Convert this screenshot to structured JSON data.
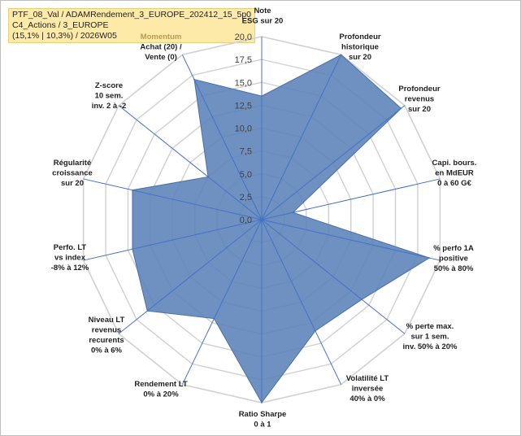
{
  "title": {
    "line1": "PTF_08_Val / ADAMRendement_3_EUROPE_202412_15_5p0",
    "line2": "C4_Actions / 3_EUROPE",
    "line3": "(15,1% | 10,3%) / 2026W05"
  },
  "chart_data": {
    "type": "radar",
    "r_range": [
      0,
      20
    ],
    "grid_step": 2.5,
    "ticks": [
      "0,0",
      "2,5",
      "5,0",
      "7,5",
      "10,0",
      "12,5",
      "15,0",
      "17,5",
      "20,0"
    ],
    "fill_color": "#5a82b8",
    "grid_color": "#d0d0d0",
    "spoke_color": "#4472c4",
    "axes": [
      {
        "label": [
          "Note",
          "ESG sur 20"
        ],
        "value": 13.5
      },
      {
        "label": [
          "Profondeur",
          "historique",
          "sur 20"
        ],
        "value": 20.0
      },
      {
        "label": [
          "Profondeur",
          "revenus",
          "sur 20"
        ],
        "value": 19.5
      },
      {
        "label": [
          "Capi. bours.",
          "en MdEUR",
          "0 à 60 G€"
        ],
        "value": 3.5
      },
      {
        "label": [
          "% perfo 1A",
          "positive",
          "50% à 80%"
        ],
        "value": 18.8
      },
      {
        "label": [
          "% perte max.",
          "sur 1 sem.",
          "inv. 50% à 20%"
        ],
        "value": 14.0
      },
      {
        "label": [
          "Volatilité LT",
          "inversée",
          "40% à 0%"
        ],
        "value": 13.5
      },
      {
        "label": [
          "Ratio Sharpe",
          "0 à 1"
        ],
        "value": 20.0
      },
      {
        "label": [
          "Rendement LT",
          "0% à 20%"
        ],
        "value": 12.0
      },
      {
        "label": [
          "Niveau LT",
          "revenus",
          "recurents",
          "0% à 6%"
        ],
        "value": 16.0
      },
      {
        "label": [
          "Perfo. LT",
          "vs index",
          "-8% à 12%"
        ],
        "value": 14.5
      },
      {
        "label": [
          "Régularité",
          "croissance",
          "sur 20"
        ],
        "value": 14.5
      },
      {
        "label": [
          "Z-score",
          "10 sem.",
          "inv. 2 à -2"
        ],
        "value": 7.5
      },
      {
        "label": [
          "Momentum",
          "Achat (20) /",
          "Vente (0)"
        ],
        "value": 17.0,
        "highlight_first_line": true
      }
    ]
  }
}
